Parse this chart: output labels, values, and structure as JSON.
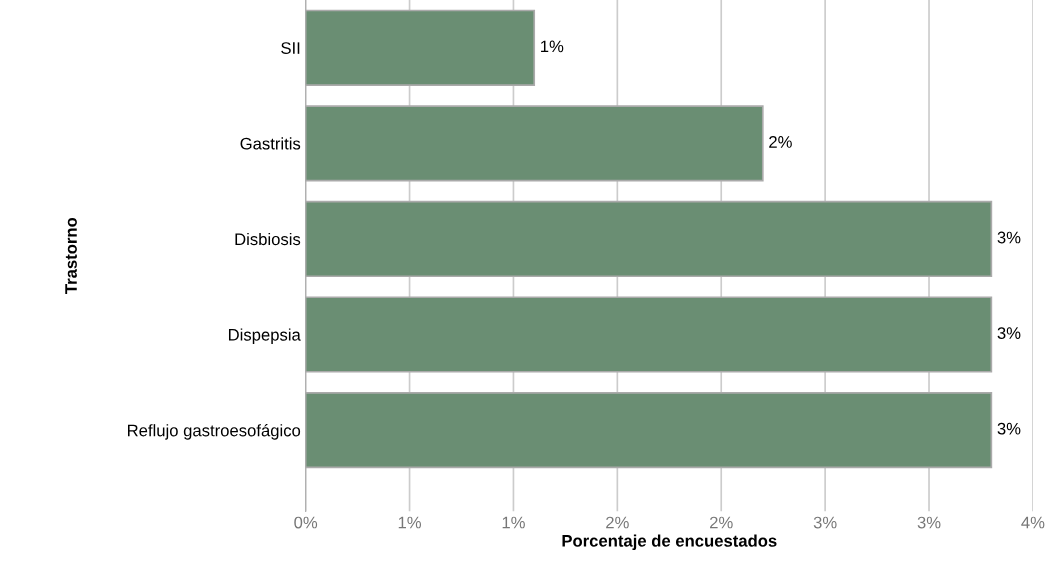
{
  "chart_data": {
    "type": "bar",
    "orientation": "horizontal",
    "xlabel": "Porcentaje de encuestados",
    "ylabel": "Trastorno",
    "categories": [
      "SII",
      "Gastritis",
      "Disbiosis",
      "Dispepsia",
      "Reflujo gastroesofágico"
    ],
    "values": [
      1.1,
      2.2,
      3.3,
      3.3,
      3.3
    ],
    "color": "#6a8e73",
    "value_labels": [
      "1%",
      "2%",
      "3%",
      "3%",
      "3%"
    ],
    "xlim": [
      0,
      3.5
    ],
    "xticks": [
      {
        "value": 0,
        "label": "0%"
      },
      {
        "value": 0.5,
        "label": "1%"
      },
      {
        "value": 1,
        "label": "1%"
      },
      {
        "value": 1.5,
        "label": "2%"
      },
      {
        "value": 2,
        "label": "2%"
      },
      {
        "value": 2.5,
        "label": "3%"
      },
      {
        "value": 3,
        "label": "3%"
      },
      {
        "value": 3.5,
        "label": "4%"
      }
    ],
    "grid": "x"
  }
}
